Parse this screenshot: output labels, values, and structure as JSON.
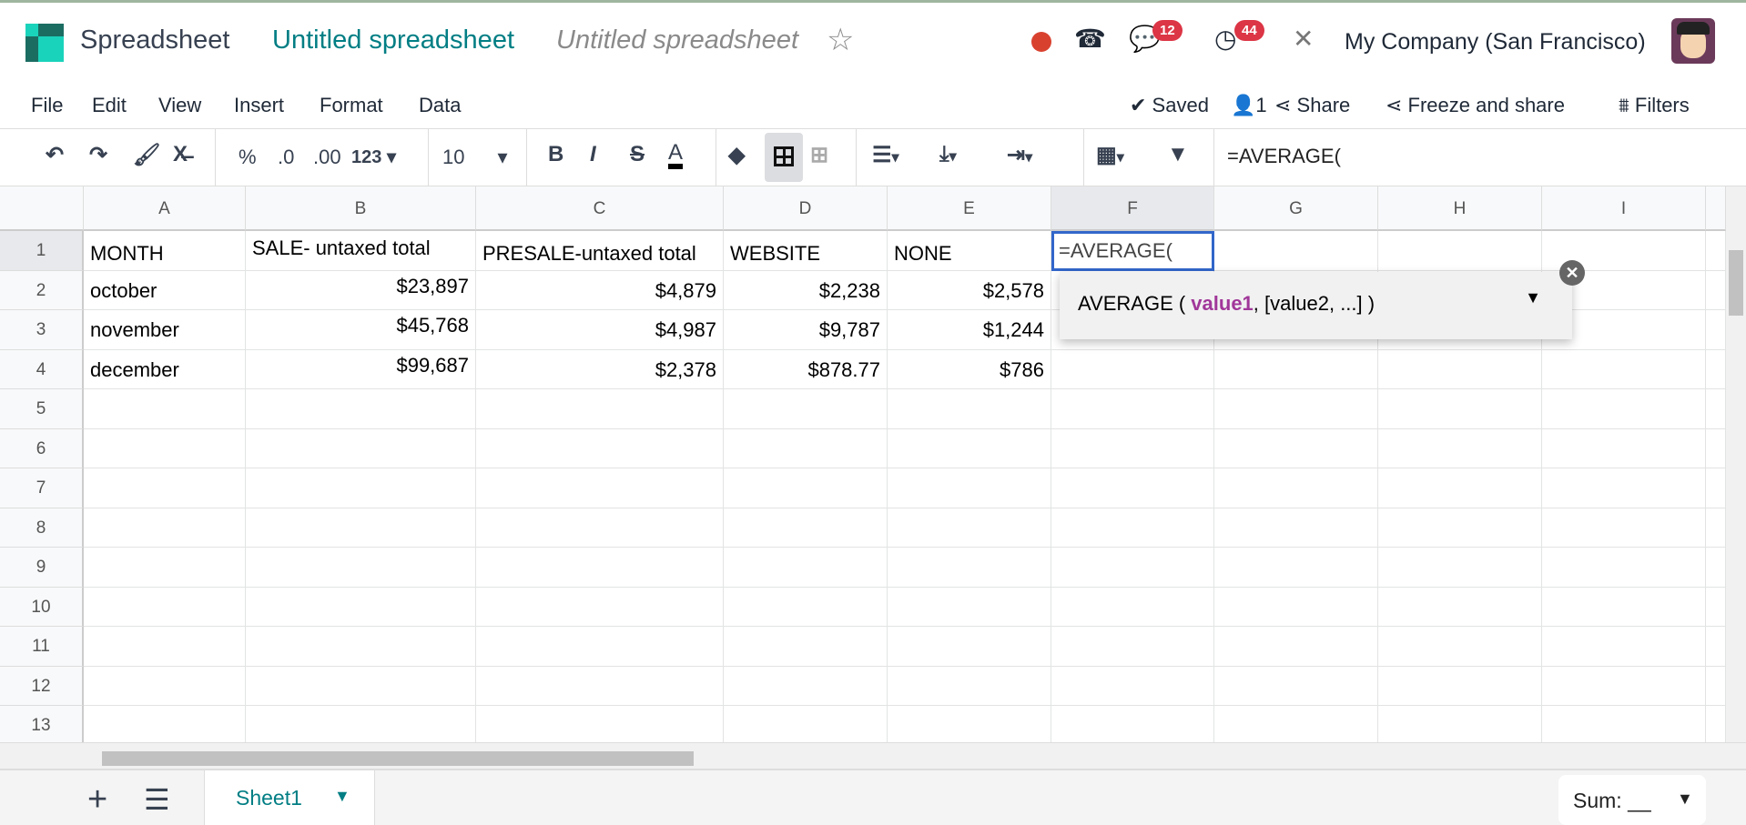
{
  "header": {
    "app_name": "Spreadsheet",
    "doc_title": "Untitled spreadsheet",
    "doc_title_input": "Untitled spreadsheet",
    "messages_badge": "12",
    "activities_badge": "44",
    "company": "My Company (San Francisco)"
  },
  "menu": [
    "File",
    "Edit",
    "View",
    "Insert",
    "Format",
    "Data"
  ],
  "actions": {
    "saved": "Saved",
    "users": "1",
    "share": "Share",
    "freeze": "Freeze and share",
    "filters": "Filters"
  },
  "toolbar": {
    "percent": "%",
    "dec_less": ".0",
    "dec_more": ".00",
    "format": "123",
    "font_size": "10",
    "bold": "B",
    "italic": "I",
    "strike": "S",
    "text_color": "A"
  },
  "formula_bar": "=AVERAGE(",
  "columns": [
    "A",
    "B",
    "C",
    "D",
    "E",
    "F",
    "G",
    "H",
    "I"
  ],
  "rows": [
    "1",
    "2",
    "3",
    "4",
    "5",
    "6",
    "7",
    "8",
    "9",
    "10",
    "11",
    "12",
    "13"
  ],
  "cells": [
    [
      "MONTH",
      "SALE- untaxed total",
      "PRESALE-untaxed total",
      "WEBSITE",
      "NONE",
      "=AVERAGE("
    ],
    [
      "october",
      "$23,897",
      "$4,879",
      "$2,238",
      "$2,578"
    ],
    [
      "november",
      "$45,768",
      "$4,987",
      "$9,787",
      "$1,244"
    ],
    [
      "december",
      "$99,687",
      "$2,378",
      "$878.77",
      "$786"
    ]
  ],
  "autocomplete": {
    "fn": "AVERAGE ( ",
    "arg1": "value1",
    "rest": ", [value2, ...] )"
  },
  "footer": {
    "sheet": "Sheet1",
    "sum": "Sum: __"
  },
  "colors": {
    "accent": "#017e84",
    "selection": "#3266ca",
    "arg": "#a1379a"
  }
}
